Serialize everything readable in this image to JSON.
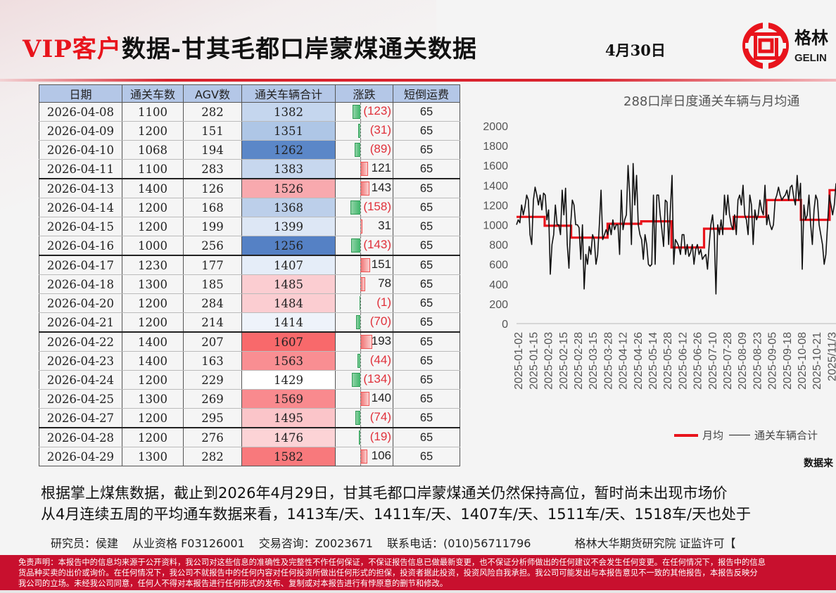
{
  "header": {
    "title_highlight": "VIP客户",
    "title_rest": "数据-甘其毛都口岸蒙煤通关数据",
    "date": "4月30日",
    "logo": {
      "cn": "格林",
      "en": "GELIN",
      "mark_color": "#e8141c"
    }
  },
  "table": {
    "columns": [
      "日期",
      "通关车数",
      "AGV数",
      "通关车辆合计",
      "涨跌",
      "短倒运费"
    ],
    "rows": [
      {
        "date": "2026-04-08",
        "cars": "1100",
        "agv": "282",
        "total": "1382",
        "change": "(123)",
        "change_num": -123,
        "fee": "65",
        "total_bg": "#c5d6ee",
        "week_end": false
      },
      {
        "date": "2026-04-09",
        "cars": "1200",
        "agv": "151",
        "total": "1351",
        "change": "(31)",
        "change_num": -31,
        "fee": "65",
        "total_bg": "#aec6e6",
        "week_end": false
      },
      {
        "date": "2026-04-10",
        "cars": "1068",
        "agv": "194",
        "total": "1262",
        "change": "(89)",
        "change_num": -89,
        "fee": "65",
        "total_bg": "#5b87c8",
        "week_end": false
      },
      {
        "date": "2026-04-11",
        "cars": "1100",
        "agv": "283",
        "total": "1383",
        "change": "121",
        "change_num": 121,
        "fee": "65",
        "total_bg": "#c7d7ee",
        "week_end": true
      },
      {
        "date": "2026-04-13",
        "cars": "1400",
        "agv": "126",
        "total": "1526",
        "change": "143",
        "change_num": 143,
        "fee": "65",
        "total_bg": "#f8a9ae",
        "week_end": false
      },
      {
        "date": "2026-04-14",
        "cars": "1200",
        "agv": "168",
        "total": "1368",
        "change": "(158)",
        "change_num": -158,
        "fee": "65",
        "total_bg": "#bccfea",
        "week_end": false
      },
      {
        "date": "2026-04-15",
        "cars": "1200",
        "agv": "199",
        "total": "1399",
        "change": "31",
        "change_num": 31,
        "fee": "65",
        "total_bg": "#dde7f5",
        "week_end": false
      },
      {
        "date": "2026-04-16",
        "cars": "1000",
        "agv": "256",
        "total": "1256",
        "change": "(143)",
        "change_num": -143,
        "fee": "65",
        "total_bg": "#5581c5",
        "week_end": true
      },
      {
        "date": "2026-04-17",
        "cars": "1230",
        "agv": "177",
        "total": "1407",
        "change": "151",
        "change_num": 151,
        "fee": "65",
        "total_bg": "#e5edf8",
        "week_end": false
      },
      {
        "date": "2026-04-18",
        "cars": "1300",
        "agv": "185",
        "total": "1485",
        "change": "78",
        "change_num": 78,
        "fee": "65",
        "total_bg": "#fbcdd1",
        "week_end": false
      },
      {
        "date": "2026-04-20",
        "cars": "1200",
        "agv": "284",
        "total": "1484",
        "change": "(1)",
        "change_num": -1,
        "fee": "65",
        "total_bg": "#fbcdd1",
        "week_end": false
      },
      {
        "date": "2026-04-21",
        "cars": "1200",
        "agv": "214",
        "total": "1414",
        "change": "(70)",
        "change_num": -70,
        "fee": "65",
        "total_bg": "#eef3fa",
        "week_end": true
      },
      {
        "date": "2026-04-22",
        "cars": "1400",
        "agv": "207",
        "total": "1607",
        "change": "193",
        "change_num": 193,
        "fee": "65",
        "total_bg": "#f8696b",
        "week_end": false
      },
      {
        "date": "2026-04-23",
        "cars": "1400",
        "agv": "163",
        "total": "1563",
        "change": "(44)",
        "change_num": -44,
        "fee": "65",
        "total_bg": "#f98e92",
        "week_end": false
      },
      {
        "date": "2026-04-24",
        "cars": "1200",
        "agv": "229",
        "total": "1429",
        "change": "(134)",
        "change_num": -134,
        "fee": "65",
        "total_bg": "#ffffff",
        "week_end": false
      },
      {
        "date": "2026-04-25",
        "cars": "1300",
        "agv": "269",
        "total": "1569",
        "change": "140",
        "change_num": 140,
        "fee": "65",
        "total_bg": "#f98a8e",
        "week_end": false
      },
      {
        "date": "2026-04-27",
        "cars": "1200",
        "agv": "295",
        "total": "1495",
        "change": "(74)",
        "change_num": -74,
        "fee": "65",
        "total_bg": "#fbc5c9",
        "week_end": true
      },
      {
        "date": "2026-04-28",
        "cars": "1200",
        "agv": "276",
        "total": "1476",
        "change": "(19)",
        "change_num": -19,
        "fee": "65",
        "total_bg": "#fcd3d6",
        "week_end": false
      },
      {
        "date": "2026-04-29",
        "cars": "1300",
        "agv": "282",
        "total": "1582",
        "change": "106",
        "change_num": 106,
        "fee": "65",
        "total_bg": "#f8797c",
        "week_end": false
      }
    ]
  },
  "chart_data": {
    "type": "line",
    "title": "288口岸日度通关车辆与月均通",
    "xlabel": "",
    "ylabel": "",
    "ylim": [
      0,
      2000
    ],
    "yticks": [
      0,
      200,
      400,
      600,
      800,
      1000,
      1200,
      1400,
      1600,
      1800,
      2000
    ],
    "xticks": [
      "2025-01-02",
      "2025-01-15",
      "2025-02-03",
      "2025-02-15",
      "2025-02-28",
      "2025-03-15",
      "2025-03-28",
      "2025-04-12",
      "2025-04-26",
      "2025-05-14",
      "2025-05-28",
      "2025-06-12",
      "2025-06-26",
      "2025-07-10",
      "2025-07-28",
      "2025-08-09",
      "2025-08-23",
      "2025-09-05",
      "2025-09-18",
      "2025-10-08",
      "2025-10-21",
      "2025/11/3"
    ],
    "legend_position": "bottom",
    "grid": false,
    "series": [
      {
        "name": "月均",
        "color": "#e8141c",
        "type": "step",
        "segments": [
          {
            "from": "2025-01-02",
            "to": "2025-01-31",
            "value": 1080
          },
          {
            "from": "2025-02-01",
            "to": "2025-02-28",
            "value": 990
          },
          {
            "from": "2025-03-01",
            "to": "2025-03-31",
            "value": 870
          },
          {
            "from": "2025-04-01",
            "to": "2025-04-30",
            "value": 1010
          },
          {
            "from": "2025-05-01",
            "to": "2025-05-31",
            "value": 1035
          },
          {
            "from": "2025-06-01",
            "to": "2025-06-30",
            "value": 770
          },
          {
            "from": "2025-07-01",
            "to": "2025-07-31",
            "value": 960
          },
          {
            "from": "2025-08-01",
            "to": "2025-08-31",
            "value": 1080
          },
          {
            "from": "2025-09-01",
            "to": "2025-09-30",
            "value": 1250
          },
          {
            "from": "2025-10-01",
            "to": "2025-10-31",
            "value": 1050
          },
          {
            "from": "2025-11-01",
            "to": "2025-11-05",
            "value": 1350
          }
        ]
      },
      {
        "name": "通关车辆合计",
        "color": "#111111",
        "type": "line",
        "values": [
          1000,
          1050,
          1020,
          1200,
          1100,
          1180,
          1300,
          1250,
          900,
          800,
          1250,
          1380,
          1300,
          1200,
          1300,
          1150,
          1320,
          1300,
          1050,
          1150,
          500,
          800,
          900,
          1200,
          1000,
          1000,
          900,
          1350,
          1100,
          1370,
          800,
          560,
          1000,
          1250,
          1200,
          1000,
          1000,
          970,
          650,
          1000,
          350,
          700,
          600,
          780,
          700,
          900,
          850,
          600,
          700,
          1000,
          1350,
          850,
          900,
          950,
          900,
          1000,
          900,
          1050,
          950,
          1000,
          1000,
          700,
          1350,
          950,
          1050,
          1100,
          1600,
          1300,
          800,
          1620,
          1200,
          1500,
          1000,
          900,
          850,
          650,
          900,
          800,
          600,
          580,
          600,
          1300,
          600,
          1300,
          1300,
          1100,
          950,
          780,
          1250,
          1230,
          800,
          1150,
          1500,
          600,
          850,
          820,
          780,
          700,
          900,
          900,
          700,
          800,
          680,
          720,
          800,
          600,
          750,
          800,
          700,
          750,
          650,
          680,
          700,
          550,
          800,
          1000,
          1100,
          900,
          300,
          1000,
          900,
          1050,
          900,
          1300,
          1100,
          1300,
          1100,
          1000,
          950,
          1100,
          900,
          1250,
          1300,
          1200,
          1400,
          1100,
          1050,
          900,
          1300,
          1200,
          800,
          1150,
          1050,
          1100,
          1250,
          1150,
          1100,
          1400,
          1000,
          1100,
          1000,
          950,
          1000,
          1250,
          1300,
          1380,
          1300,
          1250,
          1280,
          1300,
          1350,
          1250,
          1380,
          1400,
          1280,
          1200,
          1500,
          1250,
          1420,
          550,
          1200,
          1050,
          1100,
          1300,
          1000,
          800,
          1150,
          1300,
          1250,
          1000,
          900,
          800,
          600,
          700,
          1000,
          1300,
          1200,
          1100,
          1200,
          1420
        ]
      }
    ]
  },
  "chart_labels": {
    "title": "288口岸日度通关车辆与月均通",
    "legend_avg": "月均",
    "legend_total": "通关车辆合计",
    "source": "数据来"
  },
  "summary": {
    "line1": "根据掌上煤焦数据，截止到2026年4月29日，甘其毛都口岸蒙煤通关仍然保持高位，暂时尚未出现市场价",
    "line2": "从4月连续五周的平均通车数据来看，1413车/天、1411车/天、1407车/天、1511车/天、1518车/天也处于"
  },
  "footer": {
    "researcher": "研究员：侯建",
    "qualification": "从业资格 F03126001",
    "consult": "交易咨询：Z0023671",
    "phone": "联系电话：(010)56711796",
    "org": "格林大华期货研究院  证监许可【"
  },
  "disclaimer": {
    "line1": "免责声明：本报告中的信息均来源于公开资料，我公司对这些信息的准确性及完整性不作任何保证，不保证报告信息已做最新变更，也不保证分析师做出的任何建议不会发生任何变更。在任何情况下，报告中的信息",
    "line2": "货品种买卖的出价或询价。在任何情况下，我公司不就报告中的任何内容对任何投资所做出任何形式的担保，投资者据此投资，投资风险自我承担。我公司可能发出与本报告意见不一致的其他报告，本报告反映分",
    "line3": "我公司的立场。未经我公司同意，任何人不得对本报告进行任何形式的发布、复制或对本报告进行有悖原意的删节和修改。"
  }
}
